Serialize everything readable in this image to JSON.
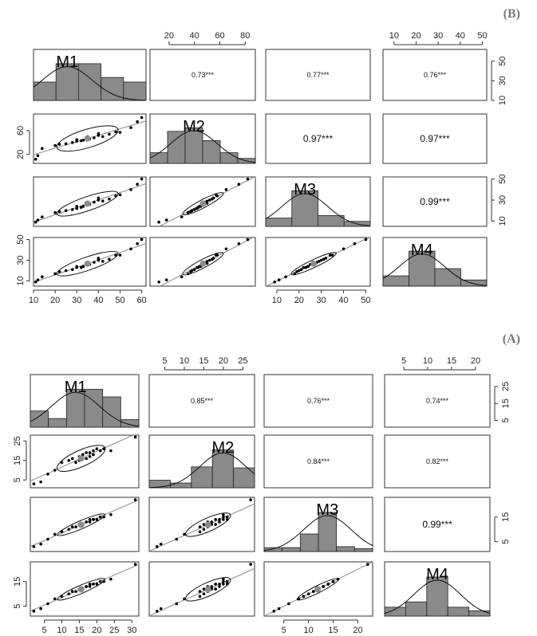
{
  "chart_data": [
    {
      "type": "scatter-matrix",
      "panel_label": "(B)",
      "variables": [
        "M1",
        "M2",
        "M3",
        "M4"
      ],
      "ranges": {
        "M1": [
          10,
          62
        ],
        "M2": [
          5,
          88
        ],
        "M3": [
          5,
          52
        ],
        "M4": [
          5,
          52
        ]
      },
      "top_axes": {
        "M2": [
          20,
          40,
          60,
          80
        ],
        "M4": [
          10,
          20,
          30,
          40,
          50
        ]
      },
      "right_axes": {
        "M1": [
          10,
          30,
          50
        ],
        "M3": [
          10,
          30,
          50
        ]
      },
      "left_axes": {
        "M2": [
          20,
          60
        ],
        "M4": [
          10,
          30,
          50
        ]
      },
      "bottom_axes": {
        "M1": [
          10,
          20,
          30,
          40,
          50,
          60
        ],
        "M3": [
          10,
          20,
          30,
          40,
          50
        ]
      },
      "correlations": [
        {
          "pair": [
            "M1",
            "M2"
          ],
          "label": "0.73***",
          "size": 9
        },
        {
          "pair": [
            "M1",
            "M3"
          ],
          "label": "0.77***",
          "size": 9
        },
        {
          "pair": [
            "M1",
            "M4"
          ],
          "label": "0.76***",
          "size": 9
        },
        {
          "pair": [
            "M2",
            "M3"
          ],
          "label": "0.97***",
          "size": 12
        },
        {
          "pair": [
            "M2",
            "M4"
          ],
          "label": "0.97***",
          "size": 12
        },
        {
          "pair": [
            "M3",
            "M4"
          ],
          "label": "0.99***",
          "size": 12
        }
      ],
      "histograms": {
        "M1": [
          2,
          4,
          4,
          2.5,
          2
        ],
        "M2": [
          1.5,
          4.5,
          5,
          3.2,
          1.5,
          0.7
        ],
        "M3": [
          1,
          4.3,
          1.3,
          0.6
        ],
        "M4": [
          1,
          3.4,
          1.7,
          0.6
        ]
      },
      "points": {
        "M1": [
          11,
          12,
          14,
          20,
          22,
          25,
          28,
          30,
          30,
          32,
          33,
          35,
          35,
          36,
          38,
          40,
          40,
          42,
          45,
          48,
          50,
          55,
          58,
          60
        ],
        "M2": [
          12,
          18,
          30,
          35,
          37,
          38,
          40,
          42,
          45,
          43,
          44,
          47,
          50,
          46,
          48,
          52,
          55,
          50,
          54,
          58,
          57,
          65,
          75,
          82
        ],
        "M3": [
          9,
          11,
          14,
          18,
          19,
          20,
          21,
          22,
          24,
          23,
          24,
          25,
          27,
          26,
          28,
          30,
          32,
          29,
          31,
          34,
          35,
          40,
          45,
          50
        ],
        "M4": [
          9,
          11,
          14,
          17,
          19,
          20,
          21,
          23,
          24,
          23,
          24,
          26,
          27,
          26,
          28,
          30,
          32,
          29,
          31,
          35,
          35,
          41,
          46,
          50
        ]
      }
    },
    {
      "type": "scatter-matrix",
      "panel_label": "(A)",
      "variables": [
        "M1",
        "M2",
        "M3",
        "M4"
      ],
      "ranges": {
        "M1": [
          1,
          32
        ],
        "M2": [
          1,
          28
        ],
        "M3": [
          1,
          23
        ],
        "M4": [
          1,
          23
        ]
      },
      "top_axes": {
        "M2": [
          5,
          10,
          15,
          20,
          25
        ],
        "M4": [
          5,
          10,
          15,
          20
        ]
      },
      "right_axes": {
        "M1": [
          5,
          15,
          25
        ],
        "M3": [
          5,
          15
        ]
      },
      "left_axes": {
        "M2": [
          5,
          15,
          25
        ],
        "M4": [
          5,
          15
        ]
      },
      "bottom_axes": {
        "M1": [
          5,
          10,
          15,
          20,
          25,
          30
        ],
        "M3": [
          5,
          10,
          15,
          20
        ]
      },
      "correlations": [
        {
          "pair": [
            "M1",
            "M2"
          ],
          "label": "0.85***",
          "size": 9
        },
        {
          "pair": [
            "M1",
            "M3"
          ],
          "label": "0.76***",
          "size": 9
        },
        {
          "pair": [
            "M1",
            "M4"
          ],
          "label": "0.74***",
          "size": 9
        },
        {
          "pair": [
            "M2",
            "M3"
          ],
          "label": "0.84***",
          "size": 9
        },
        {
          "pair": [
            "M2",
            "M4"
          ],
          "label": "0.82***",
          "size": 9
        },
        {
          "pair": [
            "M3",
            "M4"
          ],
          "label": "0.99***",
          "size": 12
        }
      ],
      "histograms": {
        "M1": [
          1.5,
          0.8,
          3.5,
          3.5,
          2.8,
          0.7
        ],
        "M2": [
          0.8,
          0.5,
          2.2,
          4,
          2.1
        ],
        "M3": [
          0.4,
          0.4,
          1.8,
          4,
          0.5,
          0.3
        ],
        "M4": [
          0.5,
          0.8,
          2.2,
          0.5,
          0.3
        ]
      },
      "points": {
        "M1": [
          2,
          4,
          6,
          8,
          10,
          12,
          13,
          14,
          15,
          15,
          16,
          16,
          17,
          17,
          18,
          18,
          19,
          19,
          20,
          21,
          22,
          24,
          31
        ],
        "M2": [
          3,
          4,
          8,
          10,
          14,
          15,
          16,
          14,
          17,
          15,
          18,
          18,
          16,
          19,
          17,
          19,
          20,
          18,
          21,
          20,
          21,
          20,
          27
        ],
        "M3": [
          3,
          4,
          6,
          8,
          9,
          10,
          11,
          11,
          12,
          12,
          12,
          12,
          13,
          13,
          13,
          14,
          14,
          14,
          14,
          15,
          15,
          16,
          22
        ],
        "M4": [
          3,
          4,
          6,
          8,
          9,
          10,
          11,
          11,
          12,
          12,
          12,
          12,
          13,
          13,
          13,
          14,
          14,
          14,
          14,
          15,
          15,
          16,
          22
        ]
      }
    }
  ]
}
